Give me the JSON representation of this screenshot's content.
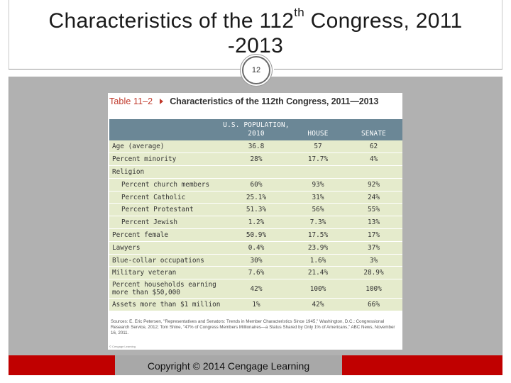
{
  "header": {
    "title_part1": "Characteristics of the 112",
    "title_sup": "th",
    "title_part2": " Congress, 2011",
    "title_line2": "-2013",
    "page_number": "12"
  },
  "figure": {
    "table_label": "Table 11–2",
    "title": "Characteristics of the 112th Congress, 2011—2013",
    "columns": [
      "",
      "U.S. POPULATION, 2010",
      "HOUSE",
      "SENATE"
    ],
    "rows": [
      {
        "label": "Age (average)",
        "indent": false,
        "values": [
          "36.8",
          "57",
          "62"
        ]
      },
      {
        "label": "Percent minority",
        "indent": false,
        "values": [
          "28%",
          "17.7%",
          "4%"
        ]
      },
      {
        "label": "Religion",
        "indent": false,
        "values": [
          "",
          "",
          ""
        ]
      },
      {
        "label": "Percent church members",
        "indent": true,
        "values": [
          "60%",
          "93%",
          "92%"
        ]
      },
      {
        "label": "Percent Catholic",
        "indent": true,
        "values": [
          "25.1%",
          "31%",
          "24%"
        ]
      },
      {
        "label": "Percent Protestant",
        "indent": true,
        "values": [
          "51.3%",
          "56%",
          "55%"
        ]
      },
      {
        "label": "Percent Jewish",
        "indent": true,
        "values": [
          "1.2%",
          "7.3%",
          "13%"
        ]
      },
      {
        "label": "Percent female",
        "indent": false,
        "values": [
          "50.9%",
          "17.5%",
          "17%"
        ]
      },
      {
        "label": "Lawyers",
        "indent": false,
        "values": [
          "0.4%",
          "23.9%",
          "37%"
        ]
      },
      {
        "label": "Blue-collar occupations",
        "indent": false,
        "values": [
          "30%",
          "1.6%",
          "3%"
        ]
      },
      {
        "label": "Military veteran",
        "indent": false,
        "values": [
          "7.6%",
          "21.4%",
          "28.9%"
        ]
      },
      {
        "label": "Percent households earning more than $50,000",
        "indent": false,
        "tall": true,
        "values": [
          "42%",
          "100%",
          "100%"
        ]
      },
      {
        "label": "Assets more than $1 million",
        "indent": false,
        "values": [
          "1%",
          "42%",
          "66%"
        ]
      }
    ],
    "source": "Sources: E. Eric Petersen, \"Representatives and Senators: Trends in Member Characteristics Since 1945,\" Washington, D.C.: Congressional Research Service, 2012; Tom Shine, \"47% of Congress Members Millionaires—a Status Shared by Only 1% of Americans,\" ABC News, November 16, 2011.",
    "credit": "© Cengage Learning"
  },
  "footer": {
    "copyright": "Copyright © 2014 Cengage Learning"
  }
}
